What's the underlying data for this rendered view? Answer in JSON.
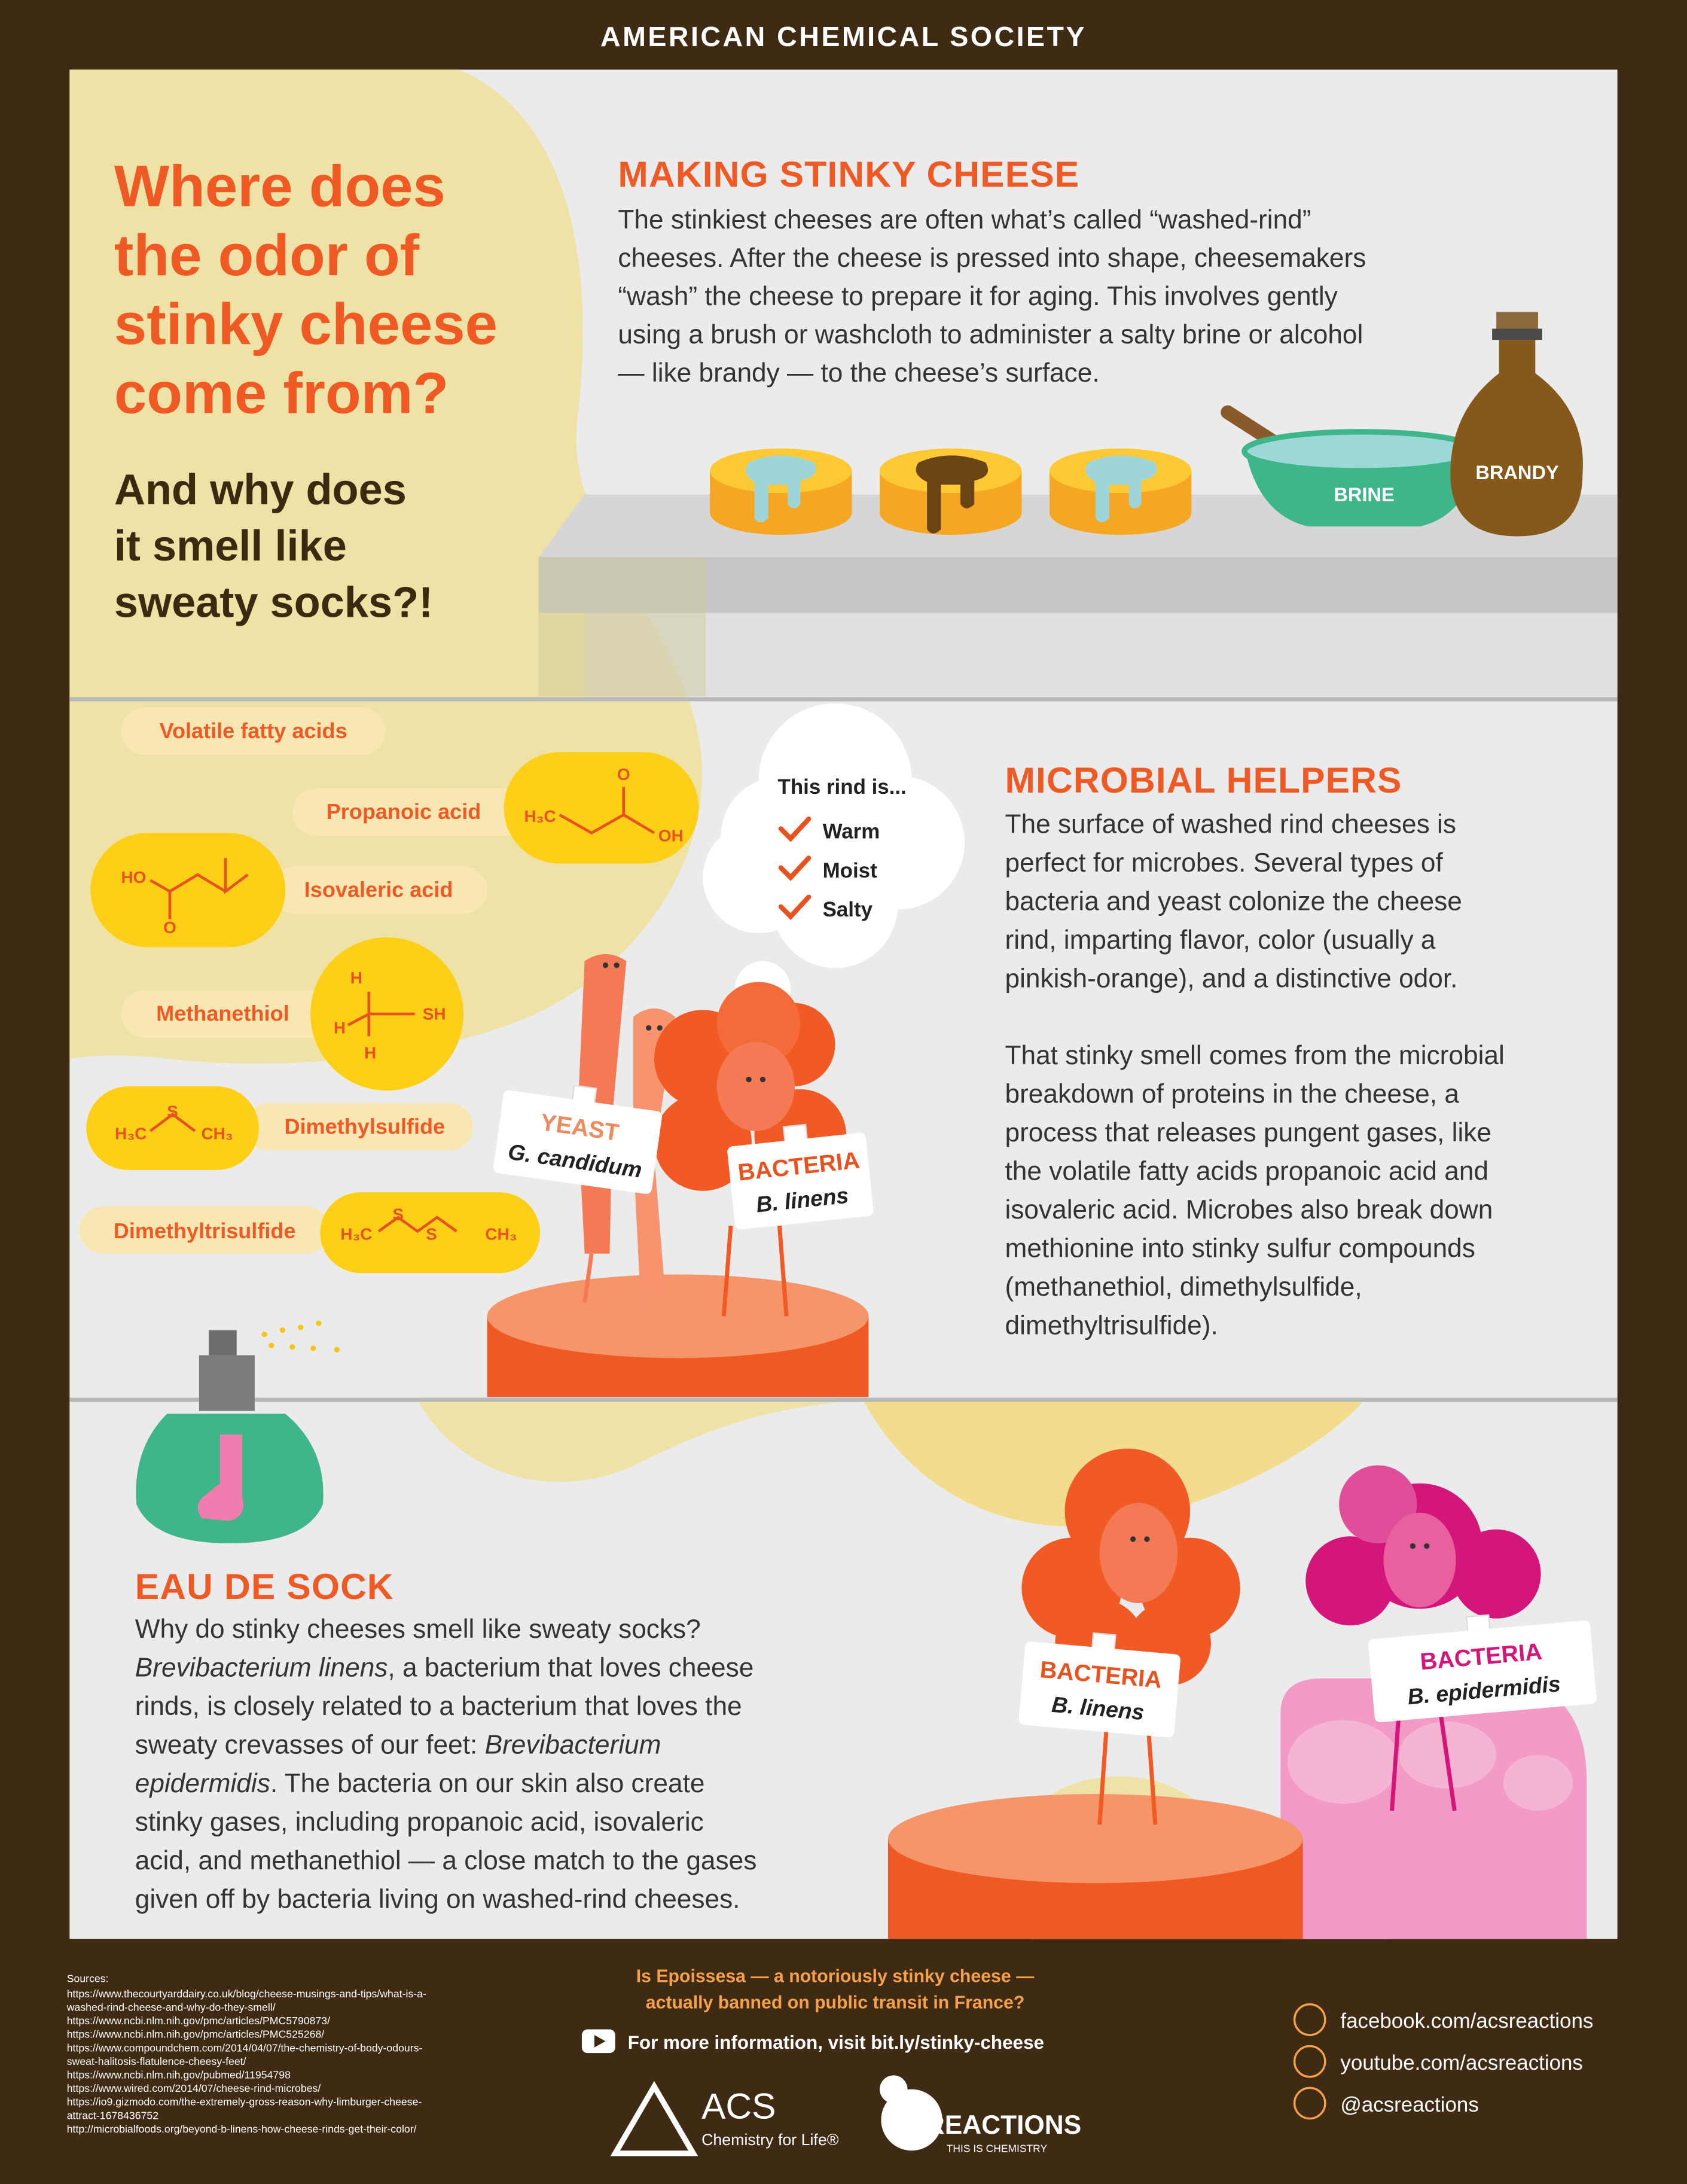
{
  "header": "AMERICAN CHEMICAL SOCIETY",
  "title": [
    "Where does",
    "the odor of",
    "stinky cheese",
    "come from?"
  ],
  "subtitle": [
    "And why does",
    "it smell like",
    "sweaty socks?!"
  ],
  "making": {
    "heading": "MAKING STINKY CHEESE",
    "body": [
      "The stinkiest cheeses are often what’s called “washed-rind”",
      "cheeses. After the cheese is pressed into shape, cheesemakers",
      "“wash” the cheese to prepare it for aging. This involves gently",
      "using a brush or washcloth to administer a salty brine or alcohol",
      "— like brandy — to the cheese’s surface."
    ],
    "brine": "BRINE",
    "brandy": "BRANDY"
  },
  "compounds": {
    "group": "Volatile fatty acids",
    "propanoic": {
      "name": "Propanoic acid",
      "atoms": [
        "H₃C",
        "O",
        "OH"
      ]
    },
    "isovaleric": {
      "name": "Isovaleric acid",
      "atoms": [
        "HO",
        "O"
      ]
    },
    "methanethiol": {
      "name": "Methanethiol",
      "atoms": [
        "H",
        "H",
        "H",
        "SH"
      ]
    },
    "dimethylsulfide": {
      "name": "Dimethylsulfide",
      "atoms": [
        "H₃C",
        "S",
        "CH₃"
      ]
    },
    "dimethyltrisulfide": {
      "name": "Dimethyltrisulfide",
      "atoms": [
        "H₃C",
        "S",
        "S",
        "CH₃"
      ]
    }
  },
  "bubble": {
    "title": "This rind is...",
    "items": [
      "Warm",
      "Moist",
      "Salty"
    ]
  },
  "microbial": {
    "heading": "MICROBIAL HELPERS",
    "body": [
      [
        "The surface of washed rind cheeses is",
        "perfect for microbes. Several types of",
        "bacteria and yeast colonize the cheese",
        "rind, imparting flavor, color (usually a",
        "pinkish-orange), and a distinctive odor."
      ],
      [
        "That stinky smell comes from the microbial",
        "breakdown of proteins in the cheese, a",
        "process that releases pungent gases, like",
        "the volatile fatty acids propanoic acid and",
        "isovaleric acid. Microbes also break down",
        "methionine into stinky sulfur compounds",
        "(methanethiol, dimethylsulfide,",
        "dimethyltrisulfide)."
      ]
    ]
  },
  "signs": [
    {
      "kind": "YEAST",
      "name": "G. candidum"
    },
    {
      "kind": "BACTERIA",
      "name": "B. linens"
    },
    {
      "kind": "BACTERIA",
      "name": "B. linens"
    },
    {
      "kind": "BACTERIA",
      "name": "B. epidermidis"
    }
  ],
  "sock": {
    "heading": "EAU DE SOCK",
    "body": [
      [
        {
          "text": "Why do stinky cheeses smell like sweaty socks?",
          "italic": false
        }
      ],
      [
        {
          "text": "Brevibacterium linens",
          "italic": true
        },
        {
          "text": ", a bacterium that loves cheese",
          "italic": false
        }
      ],
      [
        {
          "text": "rinds, is closely related to a bacterium that loves the",
          "italic": false
        }
      ],
      [
        {
          "text": "sweaty crevasses of our feet: ",
          "italic": false
        },
        {
          "text": "Brevibacterium",
          "italic": true
        }
      ],
      [
        {
          "text": "epidermidis",
          "italic": true
        },
        {
          "text": ". The bacteria on our skin also create",
          "italic": false
        }
      ],
      [
        {
          "text": "stinky gases, including propanoic acid, isovaleric",
          "italic": false
        }
      ],
      [
        {
          "text": "acid, and methanethiol — a close match to the gases",
          "italic": false
        }
      ],
      [
        {
          "text": "given off by bacteria living on washed-rind cheeses.",
          "italic": false
        }
      ]
    ]
  },
  "footer": {
    "sources_heading": "Sources:",
    "sources": [
      "https://www.thecourtyarddairy.co.uk/blog/cheese-musings-and-tips/what-is-a-",
      "washed-rind-cheese-and-why-do-they-smell/",
      "https://www.ncbi.nlm.nih.gov/pmc/articles/PMC5790873/",
      "https://www.ncbi.nlm.nih.gov/pmc/articles/PMC525268/",
      "https://www.compoundchem.com/2014/04/07/the-chemistry-of-body-odours-",
      "sweat-halitosis-flatulence-cheesy-feet/",
      "https://www.ncbi.nlm.nih.gov/pubmed/11954798",
      "https://www.wired.com/2014/07/cheese-rind-microbes/",
      "https://io9.gizmodo.com/the-extremely-gross-reason-why-limburger-cheese-",
      "attract-1678436752",
      "http://microbialfoods.org/beyond-b-linens-how-cheese-rinds-get-their-color/"
    ],
    "question": [
      "Is Epoissesa — a notoriously stinky cheese —",
      "actually banned on public transit in France?"
    ],
    "more": "For more information, visit bit.ly/stinky-cheese",
    "acs": {
      "name": "ACS",
      "tagline": "Chemistry for Life®"
    },
    "reactions": {
      "name": "REACTIONS",
      "tagline": "THIS IS CHEMISTRY"
    },
    "social": [
      "facebook.com/acsreactions",
      "youtube.com/acsreactions",
      "@acsreactions"
    ]
  }
}
